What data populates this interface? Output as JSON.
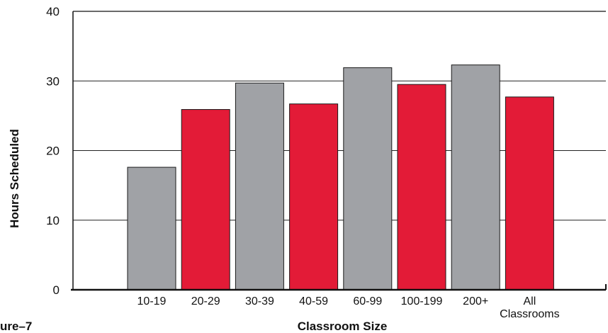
{
  "figure_label": "ure–7",
  "chart_data": {
    "type": "bar",
    "title": "",
    "xlabel": "Classroom Size",
    "ylabel": "Hours Scheduled",
    "ylim": [
      0,
      40
    ],
    "yticks": [
      "0",
      "10",
      "20",
      "30",
      "40"
    ],
    "categories": [
      "10-19",
      "20-29",
      "30-39",
      "40-59",
      "60-99",
      "100-199",
      "200+",
      "All Classrooms"
    ],
    "values": [
      17.6,
      25.9,
      29.7,
      26.7,
      31.9,
      29.5,
      32.3,
      27.7
    ],
    "bar_colors": [
      "#a0a2a6",
      "#e31b37",
      "#a0a2a6",
      "#e31b37",
      "#a0a2a6",
      "#e31b37",
      "#a0a2a6",
      "#e31b37"
    ],
    "grid": true,
    "legend": "none"
  }
}
